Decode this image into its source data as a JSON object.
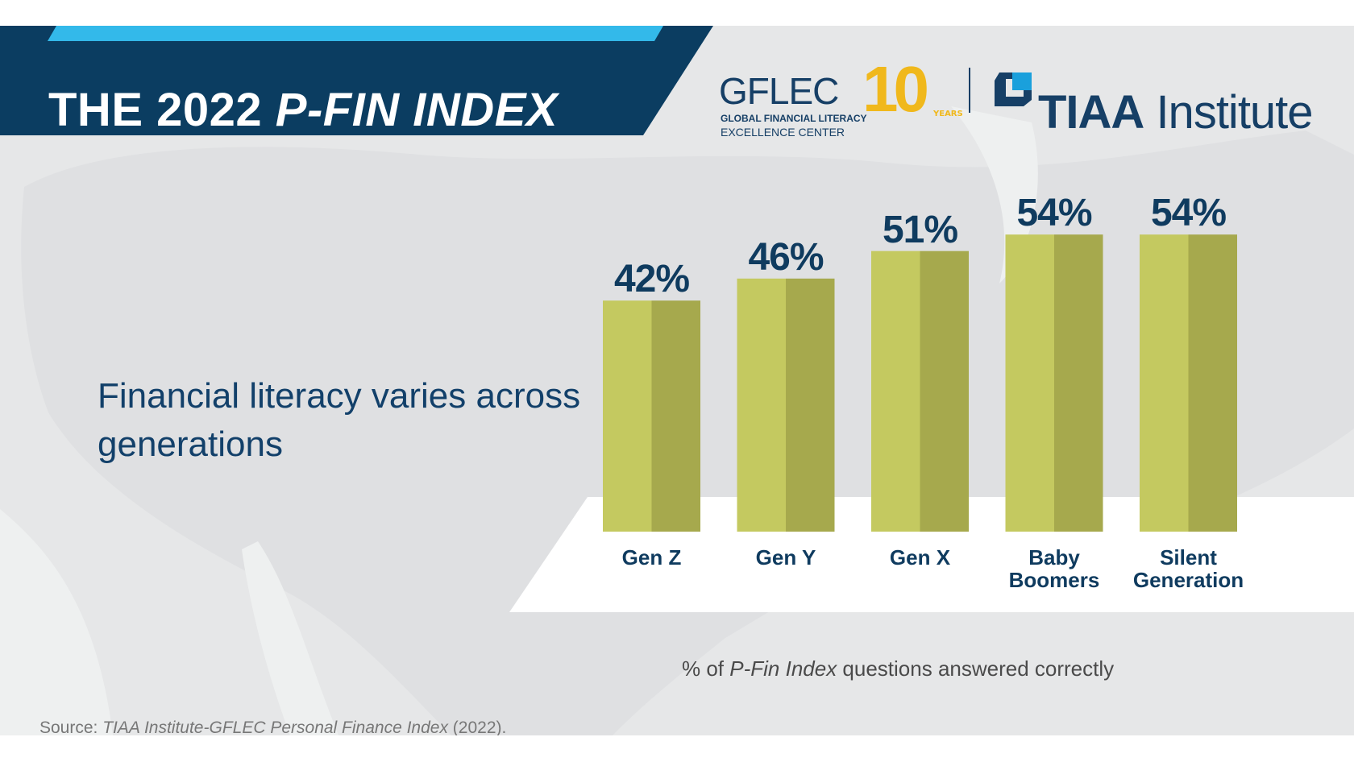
{
  "header": {
    "title_plain": "THE 2022 ",
    "title_italic": "P-FIN INDEX",
    "logos": {
      "gflec": "GFLEC",
      "gflec_line1": "GLOBAL FINANCIAL LITERACY",
      "gflec_line2": "EXCELLENCE CENTER",
      "anniversary": "10",
      "anniversary_sub": "YEARS",
      "tiaa_bold": "TIAA",
      "tiaa_rest": " Institute"
    }
  },
  "subtitle": "Financial literacy varies across generations",
  "chart_data": {
    "type": "bar",
    "categories": [
      "Gen Z",
      "Gen Y",
      "Gen X",
      "Baby Boomers",
      "Silent Generation"
    ],
    "category_lines": [
      [
        "Gen Z"
      ],
      [
        "Gen Y"
      ],
      [
        "Gen X"
      ],
      [
        "Baby",
        "Boomers"
      ],
      [
        "Silent",
        "Generation"
      ]
    ],
    "values": [
      42,
      46,
      51,
      54,
      54
    ],
    "data_labels": [
      "42%",
      "46%",
      "51%",
      "54%",
      "54%"
    ],
    "xlabel_prefix": "% of ",
    "xlabel_italic": "P-Fin Index",
    "xlabel_suffix": " questions answered correctly",
    "ylim": [
      0,
      100
    ],
    "grid": false,
    "colors": {
      "bar_light": "#c4c960",
      "bar_dark": "#a6a94d",
      "label": "#0f3b5f"
    }
  },
  "source": {
    "prefix": "Source: ",
    "italic": "TIAA Institute-GFLEC Personal Finance Index",
    "suffix": " (2022)."
  },
  "colors": {
    "banner": "#0b3d61",
    "accent": "#33b9ea",
    "background": "#e6e7e8",
    "gold": "#f0b81c"
  }
}
